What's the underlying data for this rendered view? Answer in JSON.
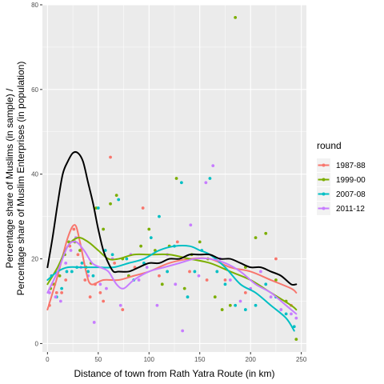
{
  "chart_data": {
    "type": "scatter",
    "xlabel": "Distance of town from Rath Yatra Route (in km)",
    "ylabel_line1": "Percentage share of Muslims (in sample) /",
    "ylabel_line2": "Percentage share of Muslim Enterprises (in population)",
    "xlim": [
      -5,
      255
    ],
    "ylim": [
      -2,
      80
    ],
    "x_ticks": [
      0,
      50,
      100,
      150,
      200,
      250
    ],
    "x_tick_labels": [
      "0",
      "50",
      "100",
      "150",
      "200",
      "250"
    ],
    "y_ticks": [
      0,
      20,
      40,
      60,
      80
    ],
    "y_tick_labels": [
      "0",
      "20",
      "40",
      "60",
      "80"
    ],
    "grid": true,
    "legend": {
      "title": "round",
      "placement": "right",
      "entries": [
        "1987-88",
        "1999-00",
        "2007-08",
        "2011-12"
      ]
    },
    "colors": {
      "1987-88": "#F8766D",
      "1999-00": "#7CAE00",
      "2007-08": "#00BFC4",
      "2011-12": "#C77CFF",
      "overall": "#000000"
    },
    "series": [
      {
        "name": "1987-88",
        "points": [
          [
            2,
            9
          ],
          [
            5,
            14
          ],
          [
            9,
            12
          ],
          [
            14,
            12
          ],
          [
            18,
            15
          ],
          [
            22,
            23
          ],
          [
            26,
            27
          ],
          [
            30,
            21
          ],
          [
            37,
            15
          ],
          [
            42,
            11
          ],
          [
            47,
            14
          ],
          [
            52,
            12
          ],
          [
            55,
            10
          ],
          [
            62,
            44
          ],
          [
            66,
            19
          ],
          [
            74,
            8
          ],
          [
            86,
            18
          ],
          [
            94,
            32
          ],
          [
            110,
            16
          ],
          [
            128,
            24
          ],
          [
            140,
            17
          ],
          [
            157,
            15
          ],
          [
            175,
            15
          ],
          [
            195,
            12
          ],
          [
            225,
            20
          ],
          [
            240,
            9
          ]
        ],
        "smooth": [
          [
            0,
            8
          ],
          [
            10,
            16
          ],
          [
            20,
            25
          ],
          [
            27,
            28
          ],
          [
            32,
            24
          ],
          [
            38,
            17
          ],
          [
            43,
            14
          ],
          [
            55,
            15
          ],
          [
            70,
            15
          ],
          [
            85,
            16
          ],
          [
            100,
            17
          ],
          [
            120,
            19
          ],
          [
            140,
            20
          ],
          [
            160,
            20
          ],
          [
            180,
            18
          ],
          [
            200,
            17
          ],
          [
            220,
            15
          ],
          [
            240,
            13
          ],
          [
            245,
            12
          ]
        ]
      },
      {
        "name": "1999-00",
        "points": [
          [
            3,
            13
          ],
          [
            7,
            14
          ],
          [
            12,
            16
          ],
          [
            17,
            21
          ],
          [
            21,
            24
          ],
          [
            27,
            24
          ],
          [
            32,
            22
          ],
          [
            38,
            18
          ],
          [
            43,
            19
          ],
          [
            48,
            32
          ],
          [
            55,
            27
          ],
          [
            62,
            33
          ],
          [
            68,
            35
          ],
          [
            74,
            20
          ],
          [
            80,
            16
          ],
          [
            92,
            23
          ],
          [
            100,
            27
          ],
          [
            106,
            22
          ],
          [
            113,
            14
          ],
          [
            120,
            23
          ],
          [
            127,
            39
          ],
          [
            135,
            13
          ],
          [
            142,
            21
          ],
          [
            150,
            24
          ],
          [
            158,
            20
          ],
          [
            165,
            11
          ],
          [
            172,
            8
          ],
          [
            180,
            9
          ],
          [
            185,
            77
          ],
          [
            195,
            18
          ],
          [
            205,
            25
          ],
          [
            215,
            26
          ],
          [
            225,
            15
          ],
          [
            235,
            10
          ],
          [
            245,
            1
          ]
        ],
        "smooth": [
          [
            0,
            14
          ],
          [
            10,
            18
          ],
          [
            20,
            23
          ],
          [
            30,
            25
          ],
          [
            40,
            24
          ],
          [
            50,
            22
          ],
          [
            60,
            20
          ],
          [
            70,
            20
          ],
          [
            85,
            21
          ],
          [
            100,
            21
          ],
          [
            120,
            21
          ],
          [
            140,
            20
          ],
          [
            160,
            19
          ],
          [
            180,
            17
          ],
          [
            200,
            15
          ],
          [
            220,
            12
          ],
          [
            240,
            9
          ],
          [
            245,
            8
          ]
        ]
      },
      {
        "name": "2007-08",
        "points": [
          [
            4,
            16
          ],
          [
            9,
            11
          ],
          [
            14,
            13
          ],
          [
            19,
            17
          ],
          [
            24,
            17
          ],
          [
            29,
            18
          ],
          [
            34,
            19
          ],
          [
            40,
            17
          ],
          [
            45,
            16
          ],
          [
            50,
            32
          ],
          [
            57,
            22
          ],
          [
            64,
            21
          ],
          [
            70,
            34
          ],
          [
            78,
            20
          ],
          [
            85,
            15
          ],
          [
            95,
            19
          ],
          [
            102,
            25
          ],
          [
            110,
            30
          ],
          [
            118,
            17
          ],
          [
            125,
            23
          ],
          [
            132,
            38
          ],
          [
            138,
            11
          ],
          [
            145,
            17
          ],
          [
            152,
            22
          ],
          [
            160,
            39
          ],
          [
            167,
            17
          ],
          [
            175,
            14
          ],
          [
            185,
            9
          ],
          [
            195,
            8
          ],
          [
            205,
            9
          ],
          [
            215,
            14
          ],
          [
            225,
            11
          ],
          [
            235,
            7
          ],
          [
            243,
            4
          ]
        ],
        "smooth": [
          [
            0,
            15
          ],
          [
            10,
            17
          ],
          [
            20,
            18
          ],
          [
            35,
            18
          ],
          [
            50,
            18
          ],
          [
            65,
            18
          ],
          [
            80,
            19
          ],
          [
            95,
            20
          ],
          [
            110,
            22
          ],
          [
            125,
            23
          ],
          [
            140,
            23
          ],
          [
            150,
            22
          ],
          [
            160,
            21
          ],
          [
            175,
            18
          ],
          [
            190,
            14
          ],
          [
            205,
            12
          ],
          [
            220,
            9
          ],
          [
            235,
            6
          ],
          [
            243,
            3
          ]
        ]
      },
      {
        "name": "2011-12",
        "points": [
          [
            2,
            12
          ],
          [
            8,
            11
          ],
          [
            13,
            10
          ],
          [
            18,
            19
          ],
          [
            23,
            22
          ],
          [
            28,
            25
          ],
          [
            33,
            18
          ],
          [
            40,
            16
          ],
          [
            46,
            5
          ],
          [
            52,
            14
          ],
          [
            58,
            13
          ],
          [
            64,
            20
          ],
          [
            72,
            9
          ],
          [
            82,
            21
          ],
          [
            90,
            15
          ],
          [
            98,
            18
          ],
          [
            108,
            9
          ],
          [
            118,
            21
          ],
          [
            126,
            14
          ],
          [
            133,
            3
          ],
          [
            141,
            28
          ],
          [
            149,
            16
          ],
          [
            156,
            38
          ],
          [
            163,
            42
          ],
          [
            170,
            20
          ],
          [
            180,
            15
          ],
          [
            190,
            10
          ],
          [
            200,
            13
          ],
          [
            210,
            17
          ],
          [
            220,
            11
          ],
          [
            230,
            8
          ],
          [
            240,
            7
          ],
          [
            245,
            6
          ]
        ],
        "smooth": [
          [
            0,
            12
          ],
          [
            10,
            17
          ],
          [
            20,
            23
          ],
          [
            28,
            24
          ],
          [
            36,
            22
          ],
          [
            44,
            19
          ],
          [
            52,
            18
          ],
          [
            60,
            17
          ],
          [
            68,
            14
          ],
          [
            75,
            13
          ],
          [
            85,
            15
          ],
          [
            100,
            17
          ],
          [
            115,
            18
          ],
          [
            130,
            19
          ],
          [
            145,
            20
          ],
          [
            160,
            20
          ],
          [
            175,
            19
          ],
          [
            190,
            17
          ],
          [
            205,
            14
          ],
          [
            220,
            12
          ],
          [
            235,
            9
          ],
          [
            245,
            7
          ]
        ]
      }
    ],
    "overall_smooth": [
      [
        0,
        18
      ],
      [
        5,
        25
      ],
      [
        10,
        33
      ],
      [
        15,
        40
      ],
      [
        20,
        43
      ],
      [
        25,
        45
      ],
      [
        30,
        45
      ],
      [
        35,
        43
      ],
      [
        40,
        38
      ],
      [
        45,
        33
      ],
      [
        50,
        27
      ],
      [
        55,
        22
      ],
      [
        60,
        19
      ],
      [
        65,
        17
      ],
      [
        70,
        17
      ],
      [
        80,
        17
      ],
      [
        90,
        18
      ],
      [
        100,
        19
      ],
      [
        110,
        19
      ],
      [
        120,
        20
      ],
      [
        130,
        20
      ],
      [
        140,
        21
      ],
      [
        150,
        21
      ],
      [
        160,
        21
      ],
      [
        170,
        20
      ],
      [
        180,
        20
      ],
      [
        190,
        19
      ],
      [
        200,
        18
      ],
      [
        210,
        18
      ],
      [
        220,
        17
      ],
      [
        230,
        16
      ],
      [
        240,
        14
      ],
      [
        245,
        14
      ]
    ]
  }
}
